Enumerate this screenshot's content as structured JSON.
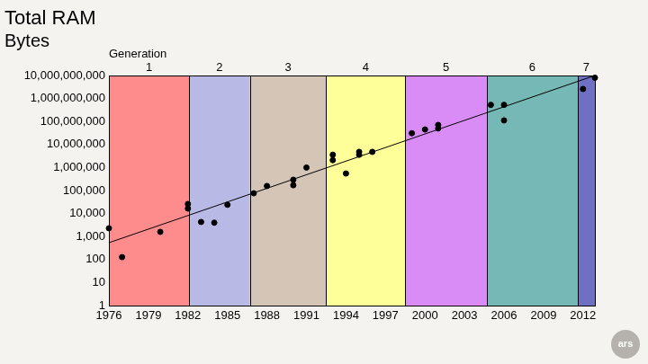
{
  "chart_data": {
    "type": "scatter",
    "title": "Total RAM",
    "y_label": "Bytes",
    "generation_label": "Generation",
    "generations": [
      {
        "label": "1",
        "start": 1976,
        "end": 1982.1,
        "color": "#ff8c8c"
      },
      {
        "label": "2",
        "start": 1982.1,
        "end": 1986.7,
        "color": "#b9b9e6"
      },
      {
        "label": "3",
        "start": 1986.7,
        "end": 1992.5,
        "color": "#d4c5b6"
      },
      {
        "label": "4",
        "start": 1992.5,
        "end": 1998.5,
        "color": "#ffff99"
      },
      {
        "label": "5",
        "start": 1998.5,
        "end": 2004.7,
        "color": "#d98cf5"
      },
      {
        "label": "6",
        "start": 2004.7,
        "end": 2011.6,
        "color": "#76b8b6"
      },
      {
        "label": "7",
        "start": 2011.6,
        "end": 2012.9,
        "color": "#6f70c4"
      }
    ],
    "x": [
      1976,
      1977,
      1979.9,
      1982,
      1982,
      1983,
      1984,
      1985,
      1987,
      1988,
      1990,
      1990,
      1991,
      1993,
      1993,
      1994,
      1995,
      1995,
      1996,
      1999,
      2000,
      2001,
      2001,
      2005,
      2006,
      2006,
      2012,
      2012.9
    ],
    "values": [
      2300,
      128,
      1600,
      26000,
      16500,
      4300,
      4000,
      24000,
      76000,
      158000,
      295000,
      170000,
      1000000,
      3600000,
      2100000,
      550000,
      4800000,
      3600000,
      4800000,
      31000000,
      45000000,
      71000000,
      50000000,
      530000000,
      530000000,
      112000000,
      2600000000,
      8000000000
    ],
    "color": "#000000",
    "marker": "circle",
    "trend": {
      "x": [
        1976,
        2012.9
      ],
      "values": [
        540,
        10000000000
      ]
    },
    "xlim": [
      1976,
      2012.9
    ],
    "xticks": [
      1976,
      1979,
      1982,
      1985,
      1988,
      1991,
      1994,
      1997,
      2000,
      2003,
      2006,
      2009,
      2012
    ],
    "ylim": [
      1,
      10000000000
    ],
    "yticks": [
      1,
      10,
      100,
      {
        "value": 1000,
        "label": "1,000"
      },
      {
        "value": 10000,
        "label": "10,000"
      },
      {
        "value": 100000,
        "label": "100,000"
      },
      {
        "value": 1000000,
        "label": "1,000,000"
      },
      {
        "value": 10000000,
        "label": "10,000,000"
      },
      {
        "value": 100000000,
        "label": "100,000,000"
      },
      {
        "value": 1000000000,
        "label": "1,000,000,000"
      },
      {
        "value": 10000000000,
        "label": "10,000,000,000"
      }
    ],
    "log": "y",
    "grid": false,
    "watermark": "ars"
  }
}
